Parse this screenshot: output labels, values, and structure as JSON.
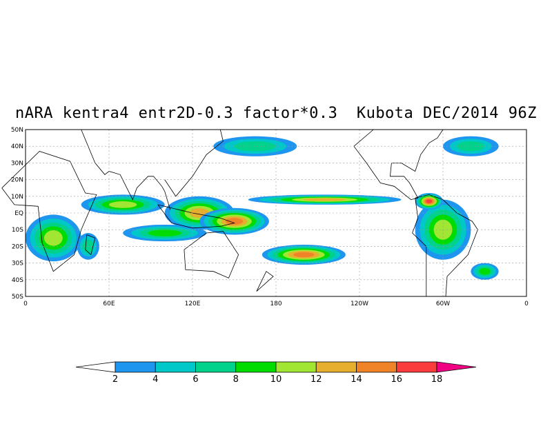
{
  "title": "nARA kentra4 entr2D-0.3 factor*0.3  Kubota DEC/2014 96Z",
  "map": {
    "lon_range": [
      0,
      360
    ],
    "lat_range": [
      -50,
      50
    ],
    "lat_labels": [
      "50N",
      "40N",
      "30N",
      "20N",
      "10N",
      "EQ",
      "10S",
      "20S",
      "30S",
      "40S",
      "50S"
    ],
    "lat_values": [
      50,
      40,
      30,
      20,
      10,
      0,
      -10,
      -20,
      -30,
      -40,
      -50
    ],
    "lon_labels": [
      "0",
      "60E",
      "120E",
      "180",
      "120W",
      "60W",
      "0"
    ],
    "lon_values": [
      0,
      60,
      120,
      180,
      240,
      300,
      360
    ],
    "grid": "dotted"
  },
  "colorbar": {
    "levels": [
      2,
      4,
      6,
      8,
      10,
      12,
      14,
      16,
      18
    ],
    "colors": [
      "#ffffff",
      "#1e96f0",
      "#00c8c8",
      "#00d28c",
      "#00dc00",
      "#a0e632",
      "#e6af2d",
      "#f08228",
      "#fa3c3c",
      "#f00082"
    ]
  },
  "field_regions": [
    {
      "lon": 20,
      "lat": -15,
      "rx": 20,
      "ry": 14,
      "level": 5
    },
    {
      "lon": 70,
      "lat": 5,
      "rx": 30,
      "ry": 6,
      "level": 5
    },
    {
      "lon": 100,
      "lat": -12,
      "rx": 30,
      "ry": 5,
      "level": 4
    },
    {
      "lon": 125,
      "lat": 0,
      "rx": 25,
      "ry": 10,
      "level": 6
    },
    {
      "lon": 150,
      "lat": -5,
      "rx": 25,
      "ry": 8,
      "level": 7
    },
    {
      "lon": 215,
      "lat": 8,
      "rx": 55,
      "ry": 3,
      "level": 6
    },
    {
      "lon": 200,
      "lat": -25,
      "rx": 30,
      "ry": 6,
      "level": 7
    },
    {
      "lon": 300,
      "lat": -10,
      "rx": 20,
      "ry": 18,
      "level": 5
    },
    {
      "lon": 290,
      "lat": 7,
      "rx": 10,
      "ry": 5,
      "level": 8
    },
    {
      "lon": 330,
      "lat": -35,
      "rx": 10,
      "ry": 5,
      "level": 4
    },
    {
      "lon": 165,
      "lat": 40,
      "rx": 30,
      "ry": 6,
      "level": 3
    },
    {
      "lon": 320,
      "lat": 40,
      "rx": 20,
      "ry": 6,
      "level": 3
    },
    {
      "lon": 45,
      "lat": -20,
      "rx": 8,
      "ry": 8,
      "level": 3
    }
  ]
}
